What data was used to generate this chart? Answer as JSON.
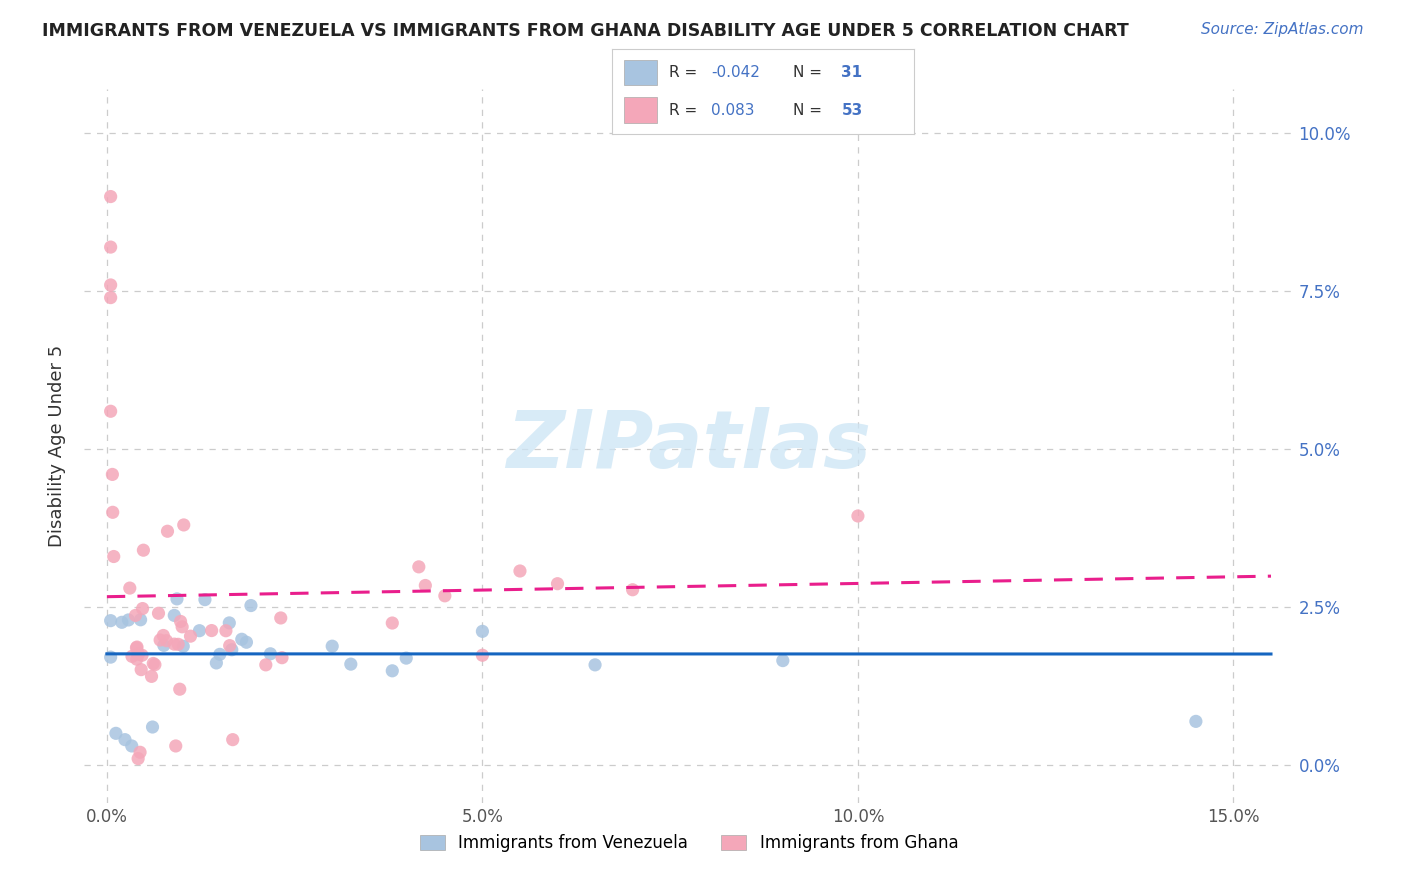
{
  "title": "IMMIGRANTS FROM VENEZUELA VS IMMIGRANTS FROM GHANA DISABILITY AGE UNDER 5 CORRELATION CHART",
  "source": "Source: ZipAtlas.com",
  "ylabel": "Disability Age Under 5",
  "x_tick_vals": [
    0.0,
    0.05,
    0.1,
    0.15
  ],
  "x_tick_labels": [
    "0.0%",
    "5.0%",
    "10.0%",
    "15.0%"
  ],
  "y_tick_vals": [
    0.0,
    0.025,
    0.05,
    0.075,
    0.1
  ],
  "y_tick_labels": [
    "0.0%",
    "2.5%",
    "5.0%",
    "7.5%",
    "10.0%"
  ],
  "xlim": [
    -0.003,
    0.158
  ],
  "ylim": [
    -0.006,
    0.107
  ],
  "watermark": "ZIPatlas",
  "color_venezuela": "#a8c4e0",
  "color_ghana": "#f4a7b9",
  "color_line_venezuela": "#1565c0",
  "color_line_ghana": "#e91e8c",
  "background_color": "#ffffff",
  "grid_color": "#cccccc",
  "legend_r1_label": "R = ",
  "legend_r1_val": "-0.042",
  "legend_n1_label": "N = ",
  "legend_n1_val": "31",
  "legend_r2_label": "R =  ",
  "legend_r2_val": "0.083",
  "legend_n2_label": "N = ",
  "legend_n2_val": "53",
  "bottom_legend_ven": "Immigrants from Venezuela",
  "bottom_legend_gha": "Immigrants from Ghana"
}
